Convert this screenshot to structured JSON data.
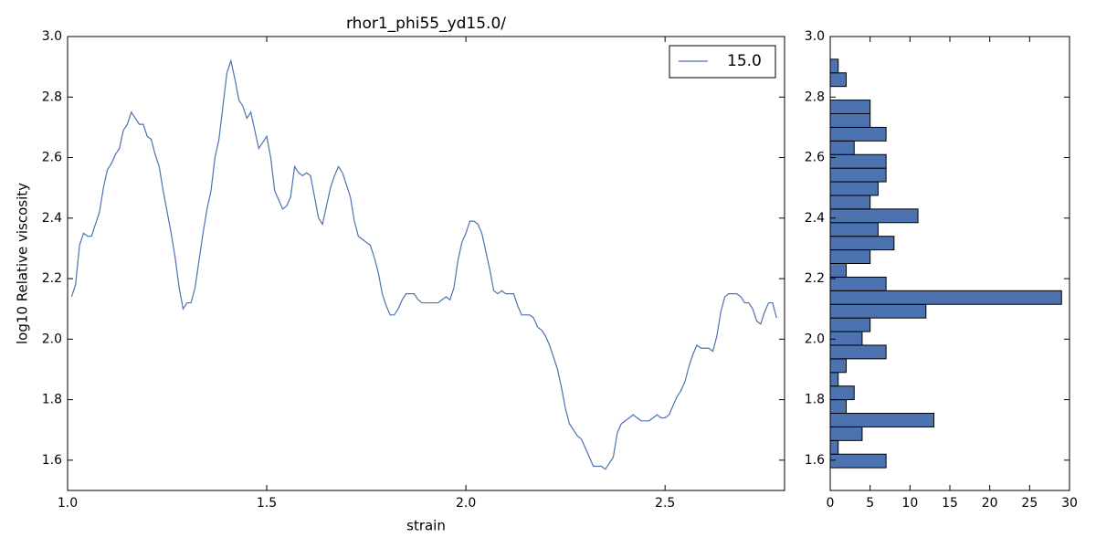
{
  "chart_data": [
    {
      "type": "line",
      "title": "rhor1_phi55_yd15.0/",
      "xlabel": "strain",
      "ylabel": "log10 Relative viscosity",
      "x": [
        1.01,
        1.02,
        1.03,
        1.04,
        1.05,
        1.06,
        1.07,
        1.08,
        1.09,
        1.1,
        1.11,
        1.12,
        1.13,
        1.14,
        1.15,
        1.16,
        1.17,
        1.18,
        1.19,
        1.2,
        1.21,
        1.22,
        1.23,
        1.24,
        1.25,
        1.26,
        1.27,
        1.28,
        1.29,
        1.3,
        1.31,
        1.32,
        1.33,
        1.34,
        1.35,
        1.36,
        1.37,
        1.38,
        1.39,
        1.4,
        1.41,
        1.42,
        1.43,
        1.44,
        1.45,
        1.46,
        1.47,
        1.48,
        1.49,
        1.5,
        1.51,
        1.52,
        1.53,
        1.54,
        1.55,
        1.56,
        1.57,
        1.58,
        1.59,
        1.6,
        1.61,
        1.62,
        1.63,
        1.64,
        1.65,
        1.66,
        1.67,
        1.68,
        1.69,
        1.7,
        1.71,
        1.72,
        1.73,
        1.74,
        1.75,
        1.76,
        1.77,
        1.78,
        1.79,
        1.8,
        1.81,
        1.82,
        1.83,
        1.84,
        1.85,
        1.86,
        1.87,
        1.88,
        1.89,
        1.9,
        1.91,
        1.92,
        1.93,
        1.94,
        1.95,
        1.96,
        1.97,
        1.98,
        1.99,
        2.0,
        2.01,
        2.02,
        2.03,
        2.04,
        2.05,
        2.06,
        2.07,
        2.08,
        2.09,
        2.1,
        2.11,
        2.12,
        2.13,
        2.14,
        2.15,
        2.16,
        2.17,
        2.18,
        2.19,
        2.2,
        2.21,
        2.22,
        2.23,
        2.24,
        2.25,
        2.26,
        2.27,
        2.28,
        2.29,
        2.3,
        2.31,
        2.32,
        2.33,
        2.34,
        2.35,
        2.36,
        2.37,
        2.38,
        2.39,
        2.4,
        2.41,
        2.42,
        2.43,
        2.44,
        2.45,
        2.46,
        2.47,
        2.48,
        2.49,
        2.5,
        2.51,
        2.52,
        2.53,
        2.54,
        2.55,
        2.56,
        2.57,
        2.58,
        2.59,
        2.6,
        2.61,
        2.62,
        2.63,
        2.64,
        2.65,
        2.66,
        2.67,
        2.68,
        2.69,
        2.7,
        2.71,
        2.72,
        2.73,
        2.74,
        2.75,
        2.76,
        2.77,
        2.78
      ],
      "series": [
        {
          "name": "15.0",
          "color": "#4c72b0",
          "values": [
            2.14,
            2.18,
            2.31,
            2.35,
            2.34,
            2.34,
            2.38,
            2.42,
            2.5,
            2.56,
            2.58,
            2.61,
            2.63,
            2.69,
            2.71,
            2.75,
            2.73,
            2.71,
            2.71,
            2.67,
            2.66,
            2.61,
            2.57,
            2.49,
            2.42,
            2.35,
            2.27,
            2.17,
            2.1,
            2.12,
            2.12,
            2.17,
            2.26,
            2.35,
            2.43,
            2.49,
            2.6,
            2.66,
            2.77,
            2.88,
            2.92,
            2.86,
            2.79,
            2.77,
            2.73,
            2.75,
            2.69,
            2.63,
            2.65,
            2.67,
            2.6,
            2.49,
            2.46,
            2.43,
            2.44,
            2.47,
            2.57,
            2.55,
            2.54,
            2.55,
            2.54,
            2.47,
            2.4,
            2.38,
            2.44,
            2.5,
            2.54,
            2.57,
            2.55,
            2.51,
            2.47,
            2.39,
            2.34,
            2.33,
            2.32,
            2.31,
            2.27,
            2.22,
            2.15,
            2.11,
            2.08,
            2.08,
            2.1,
            2.13,
            2.15,
            2.15,
            2.15,
            2.13,
            2.12,
            2.12,
            2.12,
            2.12,
            2.12,
            2.13,
            2.14,
            2.13,
            2.17,
            2.26,
            2.32,
            2.35,
            2.39,
            2.39,
            2.38,
            2.35,
            2.29,
            2.23,
            2.16,
            2.15,
            2.16,
            2.15,
            2.15,
            2.15,
            2.11,
            2.08,
            2.08,
            2.08,
            2.07,
            2.04,
            2.03,
            2.01,
            1.98,
            1.94,
            1.9,
            1.84,
            1.77,
            1.72,
            1.7,
            1.68,
            1.67,
            1.64,
            1.61,
            1.58,
            1.58,
            1.58,
            1.57,
            1.59,
            1.61,
            1.69,
            1.72,
            1.73,
            1.74,
            1.75,
            1.74,
            1.73,
            1.73,
            1.73,
            1.74,
            1.75,
            1.74,
            1.74,
            1.75,
            1.78,
            1.81,
            1.83,
            1.86,
            1.91,
            1.95,
            1.98,
            1.97,
            1.97,
            1.97,
            1.96,
            2.01,
            2.09,
            2.14,
            2.15,
            2.15,
            2.15,
            2.14,
            2.12,
            2.12,
            2.1,
            2.06,
            2.05,
            2.09,
            2.12,
            2.12,
            2.07
          ]
        }
      ],
      "xlim": [
        1.0,
        2.8
      ],
      "xticks": [
        {
          "value": 1.0,
          "label": "1.0"
        },
        1.5,
        {
          "value": 2.0,
          "label": "2.0"
        },
        2.5
      ],
      "ylim": [
        1.5,
        3.0
      ],
      "yticks": [
        1.6,
        1.8,
        {
          "value": 2.0,
          "label": "2.0"
        },
        2.2,
        2.4,
        2.6,
        2.8,
        {
          "value": 3.0,
          "label": "3.0"
        }
      ],
      "legend": "upper right"
    },
    {
      "type": "histogram",
      "orientation": "horizontal",
      "color": "#4c72b0",
      "bins": [
        1.575,
        1.62,
        1.665,
        1.71,
        1.755,
        1.8,
        1.845,
        1.89,
        1.935,
        1.98,
        2.025,
        2.07,
        2.115,
        2.16,
        2.205,
        2.25,
        2.295,
        2.34,
        2.385,
        2.43,
        2.475,
        2.52,
        2.565,
        2.61,
        2.655,
        2.7,
        2.745,
        2.79,
        2.835,
        2.88,
        2.925
      ],
      "values": [
        7,
        1,
        4,
        13,
        2,
        3,
        1,
        2,
        7,
        4,
        5,
        12,
        29,
        7,
        2,
        5,
        8,
        6,
        11,
        5,
        6,
        7,
        7,
        3,
        7,
        5,
        5,
        0,
        2,
        1
      ],
      "xlim": [
        0,
        30
      ],
      "xticks": [
        0,
        5,
        10,
        15,
        20,
        25,
        30
      ],
      "ylim": [
        1.5,
        3.0
      ],
      "yticks": [
        1.6,
        1.8,
        {
          "value": 2.0,
          "label": "2.0"
        },
        2.2,
        2.4,
        2.6,
        2.8,
        {
          "value": 3.0,
          "label": "3.0"
        }
      ]
    }
  ]
}
